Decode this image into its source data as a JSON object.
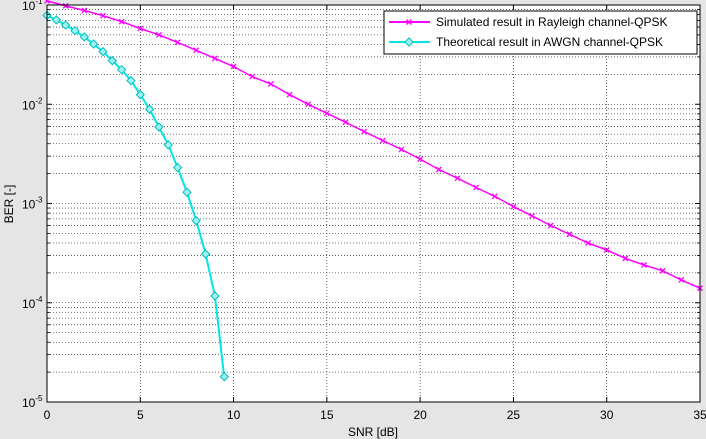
{
  "chart_data": {
    "type": "line",
    "title": "",
    "xlabel": "SNR [dB]",
    "ylabel": "BER [-]",
    "xlim": [
      0,
      35
    ],
    "ylim": [
      1e-05,
      0.1
    ],
    "yscale": "log",
    "grid": true,
    "legend_position": "top-right",
    "x_ticks": [
      "0",
      "5",
      "10",
      "15",
      "20",
      "25",
      "30",
      "35"
    ],
    "y_ticks": [
      {
        "base": "10",
        "exp": "-1",
        "value": 0.1
      },
      {
        "base": "10",
        "exp": "-2",
        "value": 0.01
      },
      {
        "base": "10",
        "exp": "-3",
        "value": 0.001
      },
      {
        "base": "10",
        "exp": "-4",
        "value": 0.0001
      },
      {
        "base": "10",
        "exp": "-5",
        "value": 1e-05
      }
    ],
    "series": [
      {
        "name": "Simulated result in Rayleigh channel-QPSK",
        "color": "#ff00ff",
        "marker": "x",
        "x": [
          0,
          1,
          2,
          3,
          4,
          5,
          6,
          7,
          8,
          9,
          10,
          11,
          12,
          13,
          14,
          15,
          16,
          17,
          18,
          19,
          20,
          21,
          22,
          23,
          24,
          25,
          26,
          27,
          28,
          29,
          30,
          31,
          32,
          33,
          34,
          35
        ],
        "y": [
          0.11,
          0.098,
          0.088,
          0.078,
          0.068,
          0.058,
          0.05,
          0.042,
          0.035,
          0.029,
          0.024,
          0.019,
          0.016,
          0.0125,
          0.01,
          0.0081,
          0.0066,
          0.0053,
          0.0043,
          0.0035,
          0.0028,
          0.0022,
          0.0018,
          0.00145,
          0.00118,
          0.00093,
          0.00075,
          0.0006,
          0.00049,
          0.0004,
          0.00034,
          0.00028,
          0.00024,
          0.00021,
          0.00017,
          0.00014
        ]
      },
      {
        "name": "Theoretical result in AWGN channel-QPSK",
        "color": "#00e5e5",
        "marker": "diamond",
        "x": [
          0,
          0.5,
          1,
          1.5,
          2,
          2.5,
          3,
          3.5,
          4,
          4.5,
          5,
          5.5,
          6,
          6.5,
          7,
          7.5,
          8,
          8.5,
          9,
          9.5
        ],
        "y": [
          0.0786,
          0.0708,
          0.0628,
          0.0551,
          0.0477,
          0.0404,
          0.0339,
          0.0275,
          0.0223,
          0.0173,
          0.0125,
          0.0089,
          0.0059,
          0.0039,
          0.0023,
          0.0013,
          0.00067,
          0.00031,
          0.000117,
          1.8e-05
        ]
      }
    ]
  }
}
